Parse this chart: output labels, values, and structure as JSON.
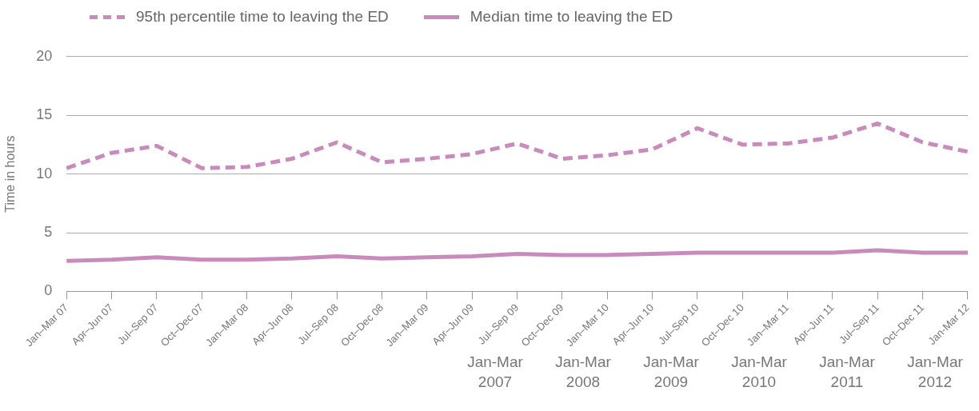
{
  "chart_data": {
    "type": "line",
    "ylabel": "Time in hours",
    "categories": [
      "Jan–Mar 07",
      "Apr–Jun 07",
      "Jul–Sep 07",
      "Oct–Dec 07",
      "Jan–Mar 08",
      "Apr–Jun 08",
      "Jul–Sep 08",
      "Oct–Dec 08",
      "Jan–Mar 09",
      "Apr–Jun 09",
      "Jul–Sep 09",
      "Oct–Dec 09",
      "Jan–Mar 10",
      "Apr–Jun 10",
      "Jul–Sep 10",
      "Oct–Dec 10",
      "Jan–Mar 11",
      "Apr–Jun 11",
      "Jul–Sep 11",
      "Oct–Dec 11",
      "Jan-Mar 12"
    ],
    "series": [
      {
        "name": "95th percentile time to leaving the ED",
        "color": "#c98bbb",
        "line_style": "dashed",
        "values": [
          10.5,
          11.8,
          12.4,
          10.5,
          10.6,
          11.3,
          12.7,
          11.0,
          11.3,
          11.7,
          12.6,
          11.3,
          11.6,
          12.1,
          13.9,
          12.5,
          12.6,
          13.1,
          14.3,
          12.7,
          11.9
        ]
      },
      {
        "name": "Median time to leaving the ED",
        "color": "#c98bbb",
        "line_style": "solid",
        "values": [
          2.6,
          2.7,
          2.9,
          2.7,
          2.7,
          2.8,
          3.0,
          2.8,
          2.9,
          3.0,
          3.2,
          3.1,
          3.1,
          3.2,
          3.3,
          3.3,
          3.3,
          3.3,
          3.5,
          3.3,
          3.3
        ]
      }
    ],
    "ylim": [
      0,
      20
    ],
    "yticks": [
      0,
      5,
      10,
      15,
      20
    ],
    "grid": "y",
    "legend": "top left",
    "marker": "none",
    "annotations": [
      "Jan-Mar 2007",
      "Jan-Mar 2008",
      "Jan-Mar 2009",
      "Jan-Mar 2010",
      "Jan-Mar 2011",
      "Jan-Mar 2012"
    ]
  }
}
